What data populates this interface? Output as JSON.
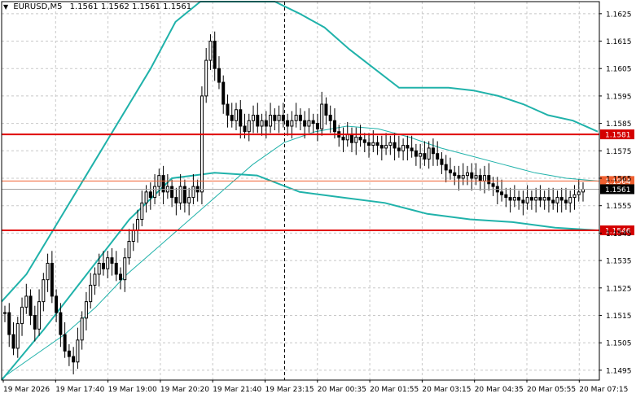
{
  "header": {
    "symbol": "EURUSD,M5",
    "ohlc": "1.1561 1.1562 1.1561 1.1561"
  },
  "colors": {
    "background": "#ffffff",
    "grid": "#c8c8c8",
    "candle": "#000000",
    "bollinger": "#20b2aa",
    "moving_average": "#20b2aa",
    "level_line": "#e00000",
    "bid_line": "#a0a0a0",
    "current_label_bg": "#000000",
    "level_label_bg": "#d40000",
    "ask_label_bg": "#f06030"
  },
  "chart_data": {
    "type": "candlestick",
    "symbol": "EURUSD",
    "timeframe": "M5",
    "ylim": [
      1.149,
      1.163
    ],
    "y_ticks": [
      "1.1625",
      "1.1615",
      "1.1605",
      "1.1595",
      "1.1585",
      "1.1575",
      "1.1565",
      "1.1555",
      "1.1545",
      "1.1535",
      "1.1525",
      "1.1515",
      "1.1505",
      "1.1495"
    ],
    "x_ticks": [
      "19 Mar 2026",
      "19 Mar 17:40",
      "19 Mar 19:00",
      "19 Mar 20:20",
      "19 Mar 21:40",
      "19 Mar 23:15",
      "20 Mar 00:35",
      "20 Mar 01:55",
      "20 Mar 03:15",
      "20 Mar 04:35",
      "20 Mar 05:55",
      "20 Mar 07:15"
    ],
    "grid": true,
    "horizontal_levels": [
      {
        "price": 1.1581,
        "label": "1.1581"
      },
      {
        "price": 1.1546,
        "label": "1.1546"
      }
    ],
    "ask_line": {
      "price": 1.1564,
      "label": "1.1564"
    },
    "current_price": {
      "price": 1.1561,
      "label": "1.1561"
    },
    "vertical_marker_x": "19 Mar 23:15",
    "close_series": [
      1.1516,
      1.1508,
      1.1503,
      1.1512,
      1.1518,
      1.1522,
      1.1515,
      1.151,
      1.152,
      1.1528,
      1.1534,
      1.1522,
      1.1516,
      1.1508,
      1.1502,
      1.15,
      1.1498,
      1.1506,
      1.1514,
      1.152,
      1.1526,
      1.153,
      1.1534,
      1.1532,
      1.1536,
      1.1534,
      1.153,
      1.1528,
      1.1536,
      1.1542,
      1.1546,
      1.155,
      1.1556,
      1.156,
      1.1558,
      1.1562,
      1.1566,
      1.156,
      1.1562,
      1.1558,
      1.1556,
      1.1562,
      1.1556,
      1.1558,
      1.1562,
      1.156,
      1.1595,
      1.1608,
      1.1615,
      1.1605,
      1.16,
      1.1592,
      1.1588,
      1.1586,
      1.159,
      1.1584,
      1.1582,
      1.1586,
      1.1588,
      1.1584,
      1.1586,
      1.1584,
      1.1588,
      1.1586,
      1.1588,
      1.1586,
      1.1584,
      1.1586,
      1.1588,
      1.1586,
      1.1584,
      1.1586,
      1.1585,
      1.1583,
      1.1592,
      1.1588,
      1.1586,
      1.1582,
      1.158,
      1.1579,
      1.1581,
      1.1578,
      1.158,
      1.1579,
      1.1578,
      1.1577,
      1.1578,
      1.1577,
      1.1576,
      1.1577,
      1.1578,
      1.1576,
      1.1575,
      1.1577,
      1.1576,
      1.1575,
      1.1573,
      1.1574,
      1.1572,
      1.1576,
      1.1574,
      1.1572,
      1.157,
      1.1568,
      1.1567,
      1.1566,
      1.1565,
      1.1566,
      1.1567,
      1.1565,
      1.1566,
      1.1564,
      1.1566,
      1.1563,
      1.1562,
      1.156,
      1.1559,
      1.1558,
      1.1557,
      1.1558,
      1.1557,
      1.1556,
      1.1558,
      1.1557,
      1.1558,
      1.1557,
      1.1558,
      1.1557,
      1.1556,
      1.1558,
      1.1557,
      1.1556,
      1.1558,
      1.1559,
      1.156,
      1.1561
    ],
    "bollinger_upper": [
      1.152,
      1.153,
      1.1545,
      1.156,
      1.1575,
      1.159,
      1.1605,
      1.1622,
      1.1632,
      1.164,
      1.164,
      1.163,
      1.1625,
      1.162,
      1.1612,
      1.1605,
      1.1598,
      1.1598,
      1.1598,
      1.1597,
      1.1595,
      1.1592,
      1.1588,
      1.1586,
      1.1582
    ],
    "bollinger_middle": [
      1.1492,
      1.15,
      1.1508,
      1.1518,
      1.153,
      1.154,
      1.155,
      1.156,
      1.157,
      1.1578,
      1.1582,
      1.1584,
      1.1583,
      1.158,
      1.1576,
      1.1573,
      1.157,
      1.1567,
      1.1565,
      1.1564
    ],
    "bollinger_lower": [
      1.1487,
      1.151,
      1.153,
      1.155,
      1.1565,
      1.1567,
      1.1566,
      1.156,
      1.1558,
      1.1556,
      1.1552,
      1.155,
      1.1549,
      1.1547,
      1.1546
    ]
  }
}
